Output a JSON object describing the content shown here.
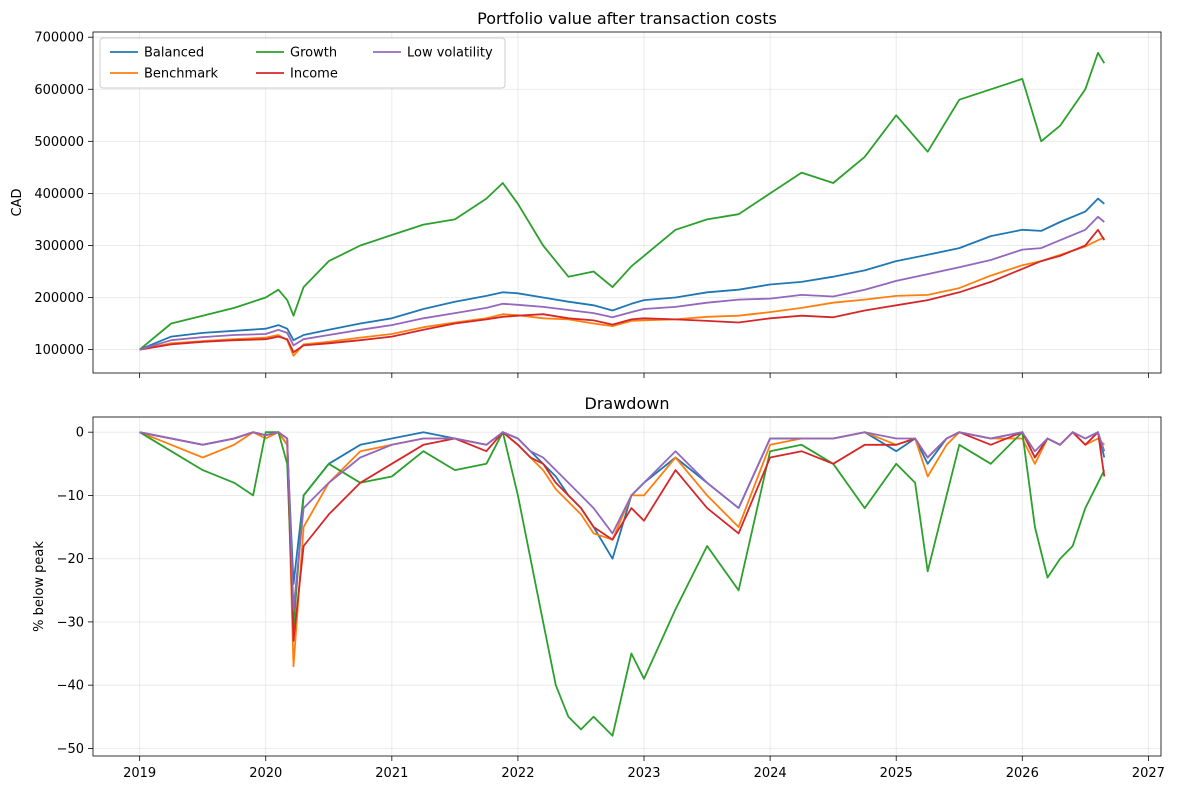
{
  "chart_data": [
    {
      "type": "line",
      "title": "Portfolio value after transaction costs",
      "xlabel": "",
      "ylabel": "CAD",
      "xlim": [
        2018.63,
        2027.1
      ],
      "ylim": [
        55000,
        710000
      ],
      "x_ticks": [
        2019,
        2020,
        2021,
        2022,
        2023,
        2024,
        2025,
        2026,
        2027
      ],
      "y_ticks": [
        100000,
        200000,
        300000,
        400000,
        500000,
        600000,
        700000
      ],
      "grid": true,
      "legend": "top-left",
      "x": [
        2019.0,
        2019.25,
        2019.5,
        2019.75,
        2020.0,
        2020.1,
        2020.17,
        2020.22,
        2020.3,
        2020.5,
        2020.75,
        2021.0,
        2021.25,
        2021.5,
        2021.75,
        2021.88,
        2022.0,
        2022.2,
        2022.4,
        2022.6,
        2022.75,
        2022.9,
        2023.0,
        2023.25,
        2023.5,
        2023.75,
        2024.0,
        2024.25,
        2024.5,
        2024.75,
        2025.0,
        2025.25,
        2025.5,
        2025.75,
        2026.0,
        2026.15,
        2026.3,
        2026.5,
        2026.6,
        2026.65
      ],
      "series": [
        {
          "name": "Balanced",
          "color": "#1f77b4",
          "values": [
            100000,
            125000,
            132000,
            136000,
            140000,
            147000,
            140000,
            118000,
            128000,
            138000,
            150000,
            160000,
            178000,
            192000,
            203000,
            210000,
            208000,
            200000,
            192000,
            185000,
            175000,
            188000,
            195000,
            200000,
            210000,
            215000,
            225000,
            230000,
            240000,
            252000,
            270000,
            282000,
            295000,
            318000,
            330000,
            328000,
            345000,
            365000,
            390000,
            380000
          ]
        },
        {
          "name": "Benchmark",
          "color": "#ff7f0e",
          "values": [
            100000,
            112000,
            116000,
            120000,
            123000,
            128000,
            118000,
            88000,
            110000,
            115000,
            123000,
            130000,
            143000,
            152000,
            160000,
            168000,
            166000,
            160000,
            158000,
            150000,
            145000,
            155000,
            156000,
            158000,
            163000,
            165000,
            172000,
            180000,
            190000,
            196000,
            203000,
            205000,
            218000,
            242000,
            262000,
            270000,
            282000,
            298000,
            310000,
            315000
          ]
        },
        {
          "name": "Growth",
          "color": "#2ca02c",
          "values": [
            100000,
            150000,
            165000,
            180000,
            200000,
            215000,
            195000,
            165000,
            220000,
            270000,
            300000,
            320000,
            340000,
            350000,
            390000,
            420000,
            380000,
            300000,
            240000,
            250000,
            220000,
            260000,
            280000,
            330000,
            350000,
            360000,
            400000,
            440000,
            420000,
            470000,
            550000,
            480000,
            580000,
            600000,
            620000,
            500000,
            530000,
            600000,
            670000,
            650000
          ]
        },
        {
          "name": "Income",
          "color": "#d62728",
          "values": [
            100000,
            110000,
            115000,
            118000,
            120000,
            125000,
            120000,
            95000,
            108000,
            112000,
            118000,
            125000,
            138000,
            150000,
            158000,
            163000,
            165000,
            168000,
            160000,
            156000,
            148000,
            158000,
            160000,
            158000,
            155000,
            152000,
            160000,
            165000,
            162000,
            175000,
            185000,
            195000,
            210000,
            230000,
            255000,
            270000,
            280000,
            300000,
            330000,
            310000
          ]
        },
        {
          "name": "Low volatility",
          "color": "#9467bd",
          "values": [
            100000,
            118000,
            124000,
            128000,
            130000,
            138000,
            132000,
            108000,
            120000,
            128000,
            138000,
            147000,
            160000,
            170000,
            180000,
            188000,
            186000,
            182000,
            176000,
            170000,
            162000,
            172000,
            178000,
            182000,
            190000,
            196000,
            198000,
            205000,
            202000,
            215000,
            232000,
            245000,
            258000,
            272000,
            292000,
            295000,
            310000,
            330000,
            355000,
            345000
          ]
        }
      ]
    },
    {
      "type": "line",
      "title": "Drawdown",
      "xlabel": "",
      "ylabel": "% below peak",
      "xlim": [
        2018.63,
        2027.1
      ],
      "ylim": [
        -51.2,
        2.4
      ],
      "x_ticks": [
        2019,
        2020,
        2021,
        2022,
        2023,
        2024,
        2025,
        2026,
        2027
      ],
      "y_ticks": [
        0,
        -10,
        -20,
        -30,
        -40,
        -50
      ],
      "grid": true,
      "x": [
        2019.0,
        2019.25,
        2019.5,
        2019.75,
        2019.9,
        2020.0,
        2020.1,
        2020.17,
        2020.22,
        2020.3,
        2020.5,
        2020.75,
        2021.0,
        2021.25,
        2021.5,
        2021.75,
        2021.88,
        2022.0,
        2022.1,
        2022.2,
        2022.3,
        2022.4,
        2022.5,
        2022.6,
        2022.75,
        2022.9,
        2023.0,
        2023.25,
        2023.5,
        2023.75,
        2024.0,
        2024.25,
        2024.5,
        2024.75,
        2025.0,
        2025.15,
        2025.25,
        2025.4,
        2025.5,
        2025.75,
        2026.0,
        2026.1,
        2026.2,
        2026.3,
        2026.4,
        2026.5,
        2026.6,
        2026.65
      ],
      "series": [
        {
          "name": "Balanced",
          "color": "#1f77b4",
          "values": [
            0,
            -1,
            -2,
            -1,
            0,
            -0.5,
            0,
            -2,
            -24,
            -10,
            -5,
            -2,
            -1,
            0,
            -1,
            -2,
            0,
            -1,
            -3,
            -5,
            -7,
            -10,
            -12,
            -15,
            -20,
            -10,
            -8,
            -4,
            -8,
            -12,
            -1,
            -1,
            -1,
            0,
            -3,
            -1,
            -5,
            -1,
            0,
            -1,
            0,
            -4,
            -1,
            -2,
            0,
            -1,
            0,
            -4
          ]
        },
        {
          "name": "Benchmark",
          "color": "#ff7f0e",
          "values": [
            0,
            -2,
            -4,
            -2,
            0,
            -1,
            0,
            -2,
            -37,
            -15,
            -8,
            -3,
            -2,
            -1,
            -1,
            -2,
            0,
            -2,
            -4,
            -6,
            -9,
            -11,
            -13,
            -16,
            -17,
            -10,
            -10,
            -4,
            -10,
            -15,
            -2,
            -1,
            -1,
            0,
            -2,
            -1,
            -7,
            -2,
            0,
            -1,
            -1,
            -5,
            -1,
            -2,
            0,
            -2,
            -1,
            -2
          ]
        },
        {
          "name": "Growth",
          "color": "#2ca02c",
          "values": [
            0,
            -3,
            -6,
            -8,
            -10,
            0,
            0,
            -5,
            -31,
            -10,
            -5,
            -8,
            -7,
            -3,
            -6,
            -5,
            0,
            -10,
            -20,
            -30,
            -40,
            -45,
            -47,
            -45,
            -48,
            -35,
            -39,
            -28,
            -18,
            -25,
            -3,
            -2,
            -5,
            -12,
            -5,
            -8,
            -22,
            -10,
            -2,
            -5,
            0,
            -15,
            -23,
            -20,
            -18,
            -12,
            -8,
            -6
          ]
        },
        {
          "name": "Income",
          "color": "#d62728",
          "values": [
            0,
            -1,
            -2,
            -1,
            0,
            -0.5,
            0,
            -1,
            -33,
            -18,
            -13,
            -8,
            -5,
            -2,
            -1,
            -3,
            0,
            -2,
            -4,
            -5,
            -8,
            -10,
            -12,
            -15,
            -17,
            -12,
            -14,
            -6,
            -12,
            -16,
            -4,
            -3,
            -5,
            -2,
            -2,
            -1,
            -4,
            -1,
            0,
            -2,
            0,
            -4,
            -1,
            -2,
            0,
            -2,
            0,
            -7
          ]
        },
        {
          "name": "Low volatility",
          "color": "#9467bd",
          "values": [
            0,
            -1,
            -2,
            -1,
            0,
            -0.5,
            0,
            -1,
            -28,
            -12,
            -8,
            -4,
            -2,
            -1,
            -1,
            -2,
            0,
            -1,
            -3,
            -4,
            -6,
            -8,
            -10,
            -12,
            -16,
            -10,
            -8,
            -3,
            -8,
            -12,
            -1,
            -1,
            -1,
            0,
            -1,
            -1,
            -4,
            -1,
            0,
            -1,
            0,
            -3,
            -1,
            -2,
            0,
            -1,
            0,
            -3
          ]
        }
      ]
    }
  ]
}
